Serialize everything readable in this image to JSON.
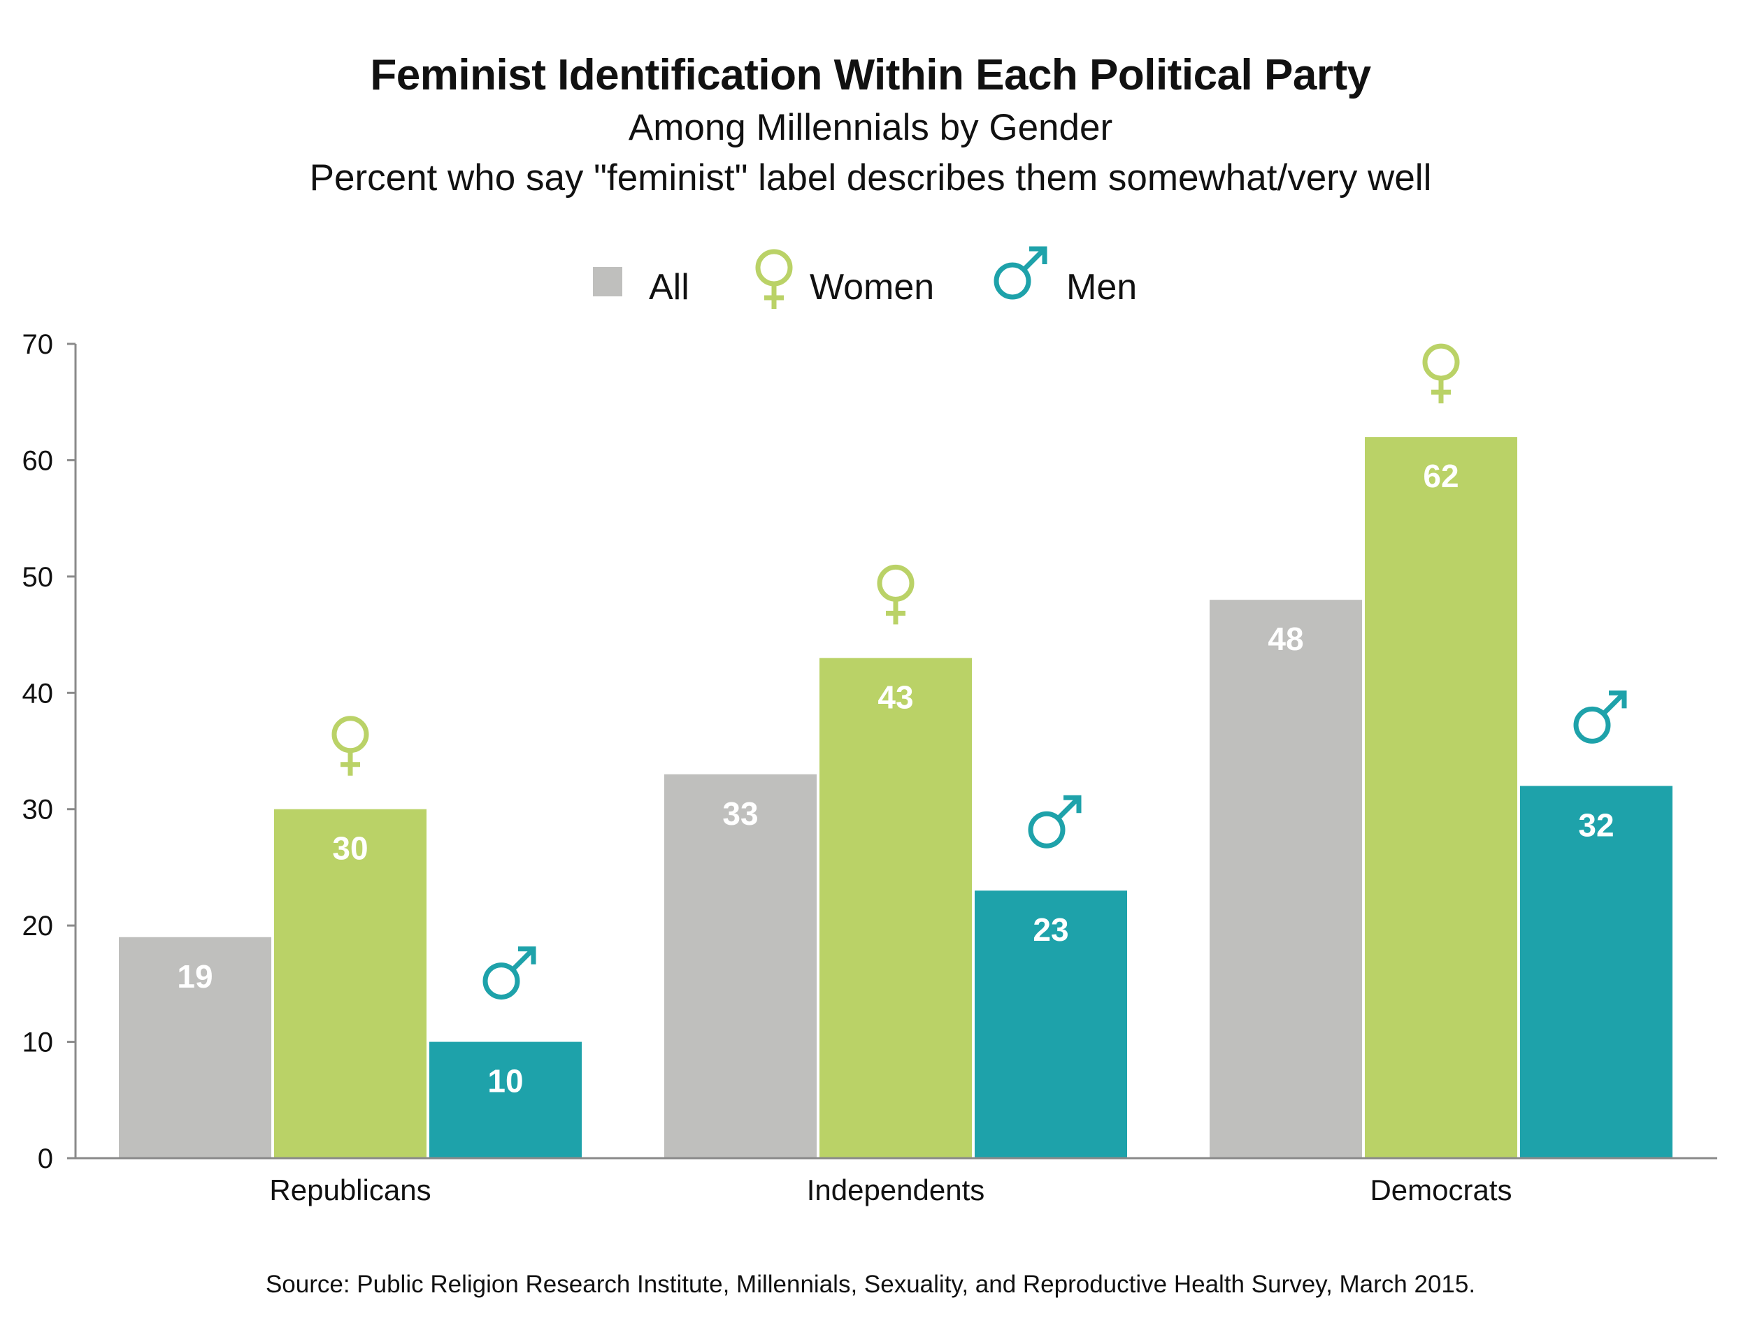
{
  "chart_data": {
    "type": "bar",
    "title": "Feminist Identification Within Each Political Party",
    "subtitle": "Among Millennials by Gender",
    "subtitle2": "Percent who say \"feminist\" label describes them somewhat/very well",
    "categories": [
      "Republicans",
      "Independents",
      "Democrats"
    ],
    "series": [
      {
        "name": "All",
        "color": "#bfbfbd",
        "icon": "",
        "values": [
          19,
          33,
          48
        ]
      },
      {
        "name": "Women",
        "color": "#bad267",
        "icon": "female-icon",
        "values": [
          30,
          43,
          62
        ]
      },
      {
        "name": "Men",
        "color": "#1ea2aa",
        "icon": "male-icon",
        "values": [
          10,
          23,
          32
        ]
      }
    ],
    "yticks": [
      0,
      10,
      20,
      30,
      40,
      50,
      60,
      70
    ],
    "ylim": [
      0,
      70
    ],
    "xlabel": "",
    "ylabel": "",
    "grid": false,
    "legend_position": "top-center",
    "source": "Source: Public Religion Research Institute, Millennials, Sexuality, and Reproductive Health Survey, March 2015."
  }
}
